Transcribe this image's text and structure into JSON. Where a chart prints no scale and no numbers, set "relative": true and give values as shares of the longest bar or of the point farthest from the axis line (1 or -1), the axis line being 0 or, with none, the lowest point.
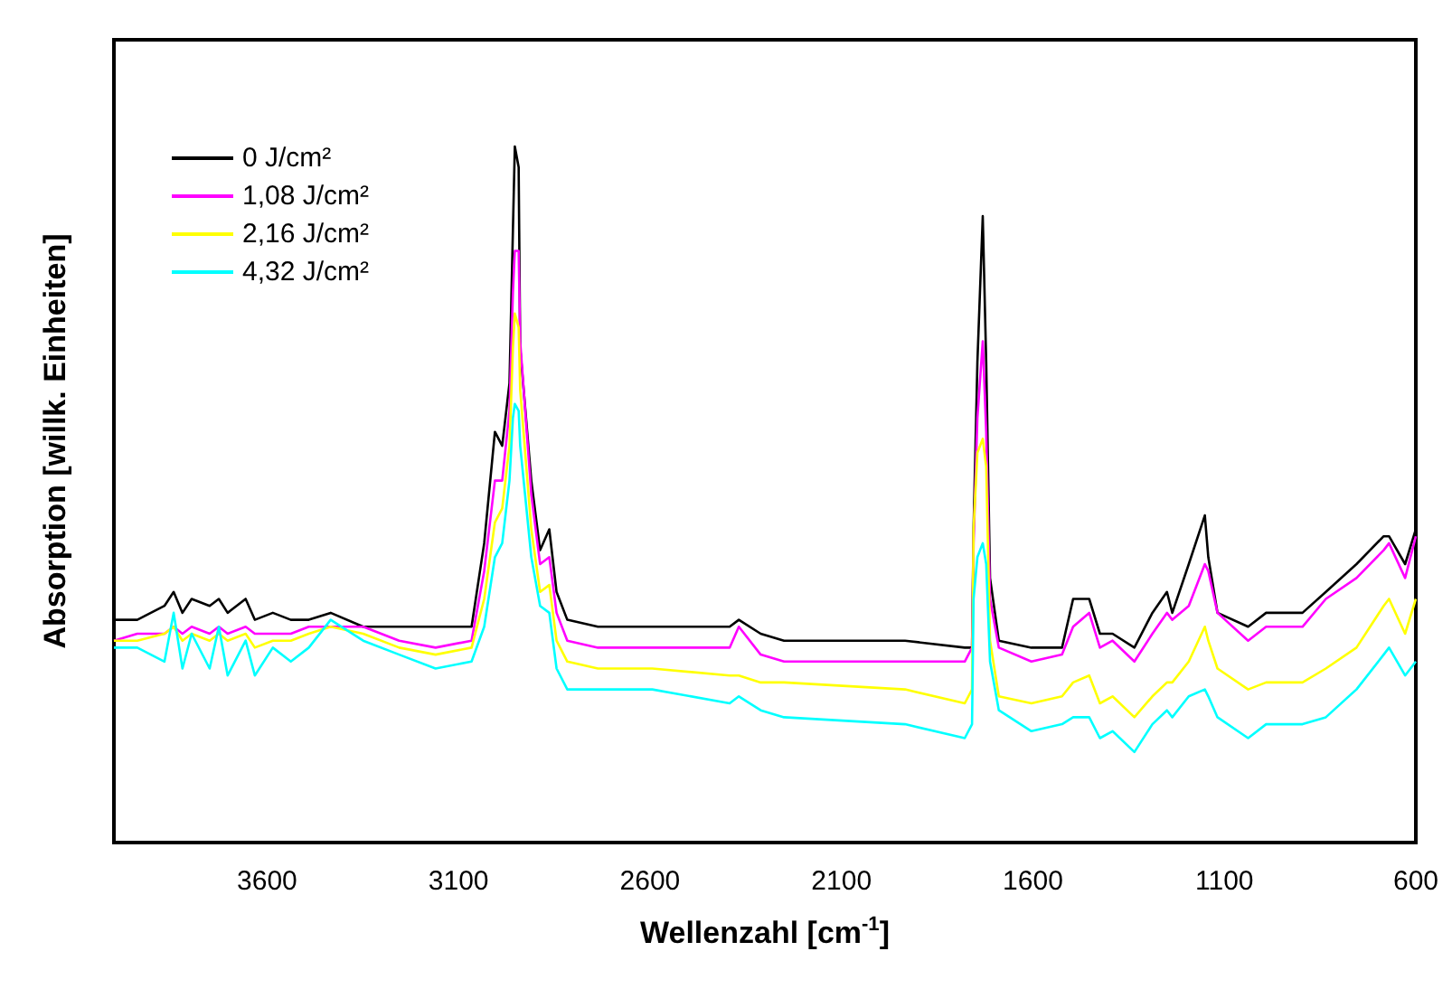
{
  "chart_data": {
    "type": "line",
    "xlabel": "Wellenzahl [cm$^{-1}$]",
    "ylabel": "Absorption [willk. Einheiten]",
    "relative": true,
    "xlim": [
      4000,
      600
    ],
    "xticks": [
      3600,
      3100,
      2600,
      2100,
      1600,
      1100,
      600
    ],
    "x": [
      4000,
      3939,
      3868,
      3844,
      3821,
      3797,
      3750,
      3726,
      3703,
      3656,
      3632,
      3585,
      3538,
      3491,
      3434,
      3349,
      3255,
      3160,
      3066,
      3033,
      3005,
      2986,
      2967,
      2958,
      2953,
      2943,
      2939,
      2910,
      2887,
      2863,
      2844,
      2816,
      2736,
      2594,
      2392,
      2368,
      2311,
      2250,
      1934,
      1778,
      1759,
      1755,
      1745,
      1731,
      1722,
      1712,
      1689,
      1604,
      1524,
      1495,
      1453,
      1425,
      1392,
      1335,
      1288,
      1250,
      1236,
      1193,
      1151,
      1142,
      1118,
      1038,
      991,
      896,
      835,
      755,
      684,
      670,
      628,
      600
    ],
    "series": [
      {
        "name": "0 J/cm²",
        "color": "#000000",
        "values": [
          0.32,
          0.32,
          0.34,
          0.36,
          0.33,
          0.35,
          0.34,
          0.35,
          0.33,
          0.35,
          0.32,
          0.33,
          0.32,
          0.32,
          0.33,
          0.31,
          0.31,
          0.31,
          0.31,
          0.43,
          0.59,
          0.57,
          0.66,
          0.88,
          1.0,
          0.97,
          0.71,
          0.52,
          0.42,
          0.45,
          0.36,
          0.32,
          0.31,
          0.31,
          0.31,
          0.32,
          0.3,
          0.29,
          0.29,
          0.28,
          0.28,
          0.45,
          0.69,
          0.9,
          0.69,
          0.38,
          0.29,
          0.28,
          0.28,
          0.35,
          0.35,
          0.3,
          0.3,
          0.28,
          0.33,
          0.36,
          0.33,
          0.4,
          0.47,
          0.41,
          0.33,
          0.31,
          0.33,
          0.33,
          0.36,
          0.4,
          0.44,
          0.44,
          0.4,
          0.45
        ]
      },
      {
        "name": "1,08 J/cm²",
        "color": "#ff00ff",
        "values": [
          0.29,
          0.3,
          0.3,
          0.31,
          0.3,
          0.31,
          0.3,
          0.31,
          0.3,
          0.31,
          0.3,
          0.3,
          0.3,
          0.31,
          0.31,
          0.31,
          0.29,
          0.28,
          0.29,
          0.39,
          0.52,
          0.52,
          0.62,
          0.79,
          0.85,
          0.85,
          0.72,
          0.5,
          0.4,
          0.41,
          0.33,
          0.29,
          0.28,
          0.28,
          0.28,
          0.31,
          0.27,
          0.26,
          0.26,
          0.26,
          0.28,
          0.43,
          0.61,
          0.72,
          0.59,
          0.35,
          0.28,
          0.26,
          0.27,
          0.31,
          0.33,
          0.28,
          0.29,
          0.26,
          0.3,
          0.33,
          0.32,
          0.34,
          0.4,
          0.39,
          0.33,
          0.29,
          0.31,
          0.31,
          0.35,
          0.38,
          0.42,
          0.43,
          0.38,
          0.44
        ]
      },
      {
        "name": "2,16 J/cm²",
        "color": "#ffff00",
        "values": [
          0.29,
          0.29,
          0.3,
          0.31,
          0.29,
          0.3,
          0.29,
          0.3,
          0.29,
          0.3,
          0.28,
          0.29,
          0.29,
          0.3,
          0.31,
          0.3,
          0.28,
          0.27,
          0.28,
          0.35,
          0.46,
          0.48,
          0.57,
          0.71,
          0.76,
          0.74,
          0.65,
          0.45,
          0.36,
          0.37,
          0.29,
          0.26,
          0.25,
          0.25,
          0.24,
          0.24,
          0.23,
          0.23,
          0.22,
          0.2,
          0.22,
          0.45,
          0.56,
          0.58,
          0.54,
          0.29,
          0.21,
          0.2,
          0.21,
          0.23,
          0.24,
          0.2,
          0.21,
          0.18,
          0.21,
          0.23,
          0.23,
          0.26,
          0.31,
          0.29,
          0.25,
          0.22,
          0.23,
          0.23,
          0.25,
          0.28,
          0.34,
          0.35,
          0.3,
          0.35
        ]
      },
      {
        "name": "4,32 J/cm²",
        "color": "#00ffff",
        "values": [
          0.28,
          0.28,
          0.26,
          0.33,
          0.25,
          0.3,
          0.25,
          0.31,
          0.24,
          0.29,
          0.24,
          0.28,
          0.26,
          0.28,
          0.32,
          0.29,
          0.27,
          0.25,
          0.26,
          0.31,
          0.41,
          0.43,
          0.52,
          0.61,
          0.63,
          0.62,
          0.57,
          0.41,
          0.34,
          0.33,
          0.25,
          0.22,
          0.22,
          0.22,
          0.2,
          0.21,
          0.19,
          0.18,
          0.17,
          0.15,
          0.17,
          0.35,
          0.41,
          0.43,
          0.4,
          0.26,
          0.19,
          0.16,
          0.17,
          0.18,
          0.18,
          0.15,
          0.16,
          0.13,
          0.17,
          0.19,
          0.18,
          0.21,
          0.22,
          0.21,
          0.18,
          0.15,
          0.17,
          0.17,
          0.18,
          0.22,
          0.27,
          0.28,
          0.24,
          0.26
        ]
      }
    ],
    "legend": "top left",
    "grid": false,
    "marker": "none",
    "line_style": "solid"
  }
}
